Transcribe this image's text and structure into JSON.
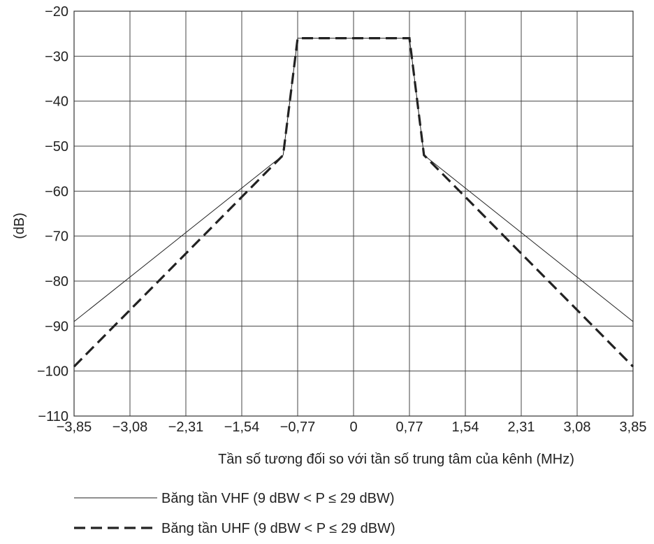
{
  "chart_data": {
    "type": "line",
    "xlabel": "Tần số tương đối so với tần số trung tâm của kênh (MHz)",
    "ylabel": "(dB)",
    "xlim": [
      -3.85,
      3.85
    ],
    "ylim": [
      -110,
      -20
    ],
    "x_ticks": [
      -3.85,
      -3.08,
      -2.31,
      -1.54,
      -0.77,
      0,
      0.77,
      1.54,
      2.31,
      3.08,
      3.85
    ],
    "x_tick_labels": [
      "−3,85",
      "−3,08",
      "−2,31",
      "−1,54",
      "−0,77",
      "0",
      "0,77",
      "1,54",
      "2,31",
      "3,08",
      "3,85"
    ],
    "y_ticks": [
      -20,
      -30,
      -40,
      -50,
      -60,
      -70,
      -80,
      -90,
      -100,
      -110
    ],
    "y_tick_labels": [
      "−20",
      "−30",
      "−40",
      "−50",
      "−60",
      "−70",
      "−80",
      "−90",
      "−100",
      "−110"
    ],
    "grid": true,
    "legend_position": "bottom-left",
    "series": [
      {
        "name": "Băng tần VHF (9 dBW < P ≤ 29 dBW)",
        "style": "solid-thin",
        "color": "#222222",
        "points": [
          [
            -3.85,
            -89
          ],
          [
            -0.97,
            -52
          ],
          [
            -0.77,
            -26
          ],
          [
            0.77,
            -26
          ],
          [
            0.97,
            -52
          ],
          [
            3.85,
            -89
          ]
        ]
      },
      {
        "name": "Băng tần UHF (9 dBW < P ≤ 29 dBW)",
        "style": "dashed-thick",
        "color": "#222222",
        "points": [
          [
            -3.85,
            -99
          ],
          [
            -0.97,
            -52
          ],
          [
            -0.77,
            -26
          ],
          [
            0.77,
            -26
          ],
          [
            0.97,
            -52
          ],
          [
            3.85,
            -99
          ]
        ]
      }
    ]
  }
}
